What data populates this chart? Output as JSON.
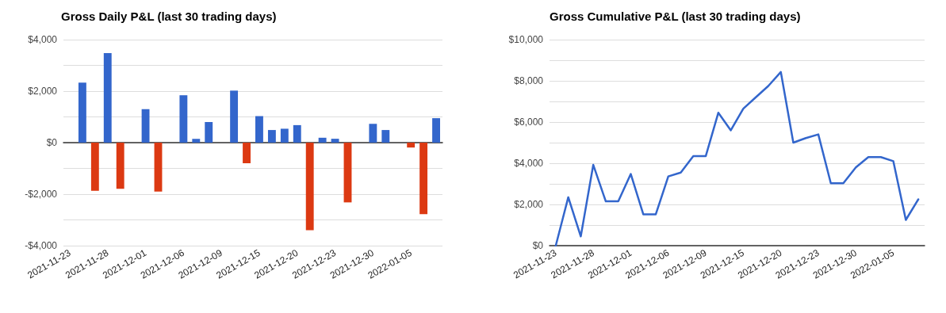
{
  "chart_data": [
    {
      "type": "bar",
      "title": "Gross Daily P&L (last 30 trading days)",
      "categories": [
        "2021-11-23",
        null,
        null,
        "2021-11-28",
        null,
        null,
        "2021-12-01",
        null,
        null,
        "2021-12-06",
        null,
        null,
        "2021-12-09",
        null,
        null,
        "2021-12-15",
        null,
        null,
        "2021-12-20",
        null,
        null,
        "2021-12-23",
        null,
        null,
        "2021-12-30",
        null,
        null,
        "2022-01-05",
        null,
        null
      ],
      "values": [
        0,
        2330,
        -1870,
        3480,
        -1790,
        0,
        1300,
        -1900,
        0,
        1840,
        150,
        800,
        0,
        2020,
        -800,
        1030,
        490,
        540,
        680,
        -3400,
        190,
        150,
        -2320,
        0,
        730,
        490,
        0,
        -190,
        -2780,
        950
      ],
      "colors": [
        "#3366cc",
        "#3366cc",
        "#dc3912",
        "#3366cc",
        "#dc3912",
        "#3366cc",
        "#3366cc",
        "#dc3912",
        "#3366cc",
        "#3366cc",
        "#3366cc",
        "#3366cc",
        "#3366cc",
        "#3366cc",
        "#dc3912",
        "#3366cc",
        "#3366cc",
        "#3366cc",
        "#3366cc",
        "#dc3912",
        "#3366cc",
        "#3366cc",
        "#dc3912",
        "#3366cc",
        "#3366cc",
        "#3366cc",
        "#3366cc",
        "#dc3912",
        "#dc3912",
        "#3366cc"
      ],
      "ylim": [
        -4000,
        4000
      ],
      "yticks": [
        {
          "value": -4000,
          "label": "-$4,000"
        },
        {
          "value": -3000,
          "label": null
        },
        {
          "value": -2000,
          "label": "-$2,000"
        },
        {
          "value": -1000,
          "label": null
        },
        {
          "value": 0,
          "label": "$0"
        },
        {
          "value": 1000,
          "label": null
        },
        {
          "value": 2000,
          "label": "$2,000"
        },
        {
          "value": 3000,
          "label": null
        },
        {
          "value": 4000,
          "label": "$4,000"
        }
      ],
      "grid": "y"
    },
    {
      "type": "line",
      "title": "Gross Cumulative P&L (last 30 trading days)",
      "categories": [
        "2021-11-23",
        null,
        null,
        "2021-11-28",
        null,
        null,
        "2021-12-01",
        null,
        null,
        "2021-12-06",
        null,
        null,
        "2021-12-09",
        null,
        null,
        "2021-12-15",
        null,
        null,
        "2021-12-20",
        null,
        null,
        "2021-12-23",
        null,
        null,
        "2021-12-30",
        null,
        null,
        "2022-01-05",
        null,
        null
      ],
      "series": [
        {
          "color": "#3366cc",
          "values": [
            0,
            2350,
            450,
            3920,
            2150,
            2150,
            3480,
            1520,
            1520,
            3360,
            3550,
            4350,
            4350,
            6450,
            5600,
            6650,
            7200,
            7750,
            8430,
            5000,
            5220,
            5400,
            3030,
            3030,
            3800,
            4300,
            4300,
            4100,
            1250,
            2250
          ]
        }
      ],
      "ylim": [
        0,
        10000
      ],
      "yticks": [
        {
          "value": 0,
          "label": "$0"
        },
        {
          "value": 1000,
          "label": null
        },
        {
          "value": 2000,
          "label": "$2,000"
        },
        {
          "value": 3000,
          "label": null
        },
        {
          "value": 4000,
          "label": "$4,000"
        },
        {
          "value": 5000,
          "label": null
        },
        {
          "value": 6000,
          "label": "$6,000"
        },
        {
          "value": 7000,
          "label": null
        },
        {
          "value": 8000,
          "label": "$8,000"
        },
        {
          "value": 9000,
          "label": null
        },
        {
          "value": 10000,
          "label": "$10,000"
        }
      ],
      "grid": "y",
      "marker": "none",
      "line_style": "solid"
    }
  ]
}
